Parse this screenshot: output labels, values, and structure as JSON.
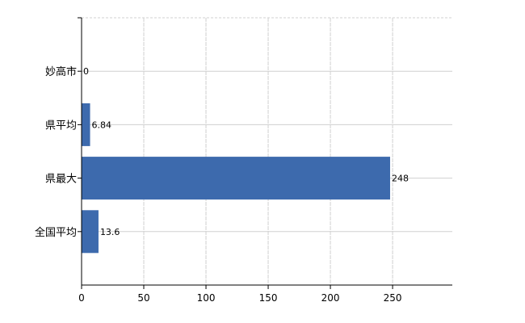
{
  "chart_data": {
    "type": "bar",
    "orientation": "horizontal",
    "categories": [
      "妙高市",
      "県平均",
      "県最大",
      "全国平均"
    ],
    "values": [
      0,
      6.84,
      248,
      13.6
    ],
    "data_labels": [
      "0",
      "6.84",
      "248",
      "13.6"
    ],
    "title": "",
    "xlabel": "",
    "ylabel": "",
    "xlim": [
      0,
      298
    ],
    "xticks": [
      0,
      50,
      100,
      150,
      200,
      250
    ],
    "grid": true,
    "legend": "none",
    "bar_color": "#3d6aad"
  }
}
